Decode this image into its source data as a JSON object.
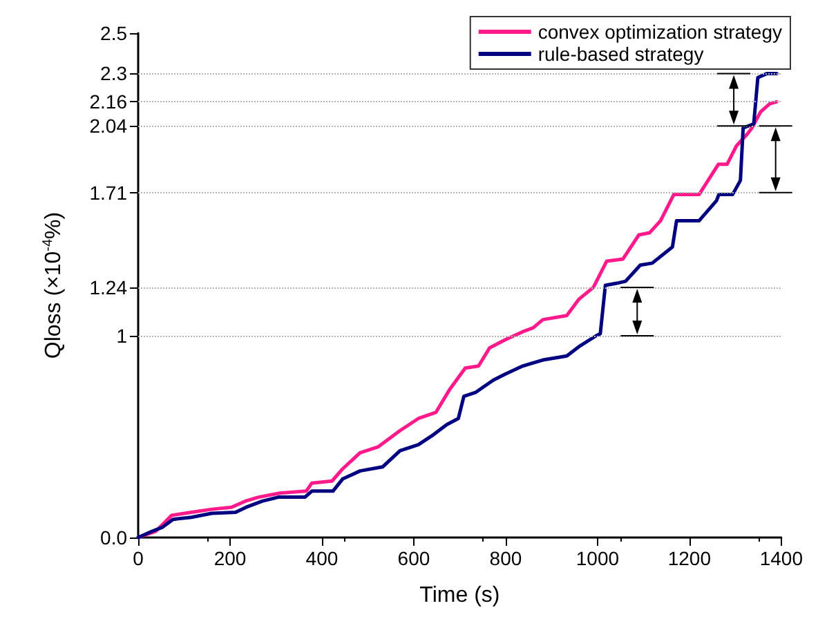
{
  "chart_data": {
    "type": "line",
    "xlabel": "Time (s)",
    "ylabel": "Qloss (×10$^{-4}$%)",
    "xlim": [
      0,
      1400
    ],
    "xticks": [
      0,
      200,
      400,
      600,
      800,
      1000,
      1200,
      1400
    ],
    "ylim": [
      0,
      2.5
    ],
    "yticks": [
      "0.0",
      1,
      1.24,
      1.71,
      2.04,
      2.16,
      2.3,
      2.5
    ],
    "legend": "top right",
    "grid": false,
    "marker": "none",
    "line_style": "solid",
    "ref_lines": [
      {
        "axis": "y",
        "value": 1,
        "color": "#b4b4b4",
        "line_style": "dotted"
      },
      {
        "axis": "y",
        "value": 1.24,
        "color": "#b4b4b4",
        "line_style": "dotted"
      },
      {
        "axis": "y",
        "value": 1.71,
        "color": "#b4b4b4",
        "line_style": "dotted"
      },
      {
        "axis": "y",
        "value": 2.04,
        "color": "#b4b4b4",
        "line_style": "dotted"
      },
      {
        "axis": "y",
        "value": 2.16,
        "color": "#b4b4b4",
        "line_style": "dotted"
      },
      {
        "axis": "y",
        "value": 2.3,
        "color": "#b4b4b4",
        "line_style": "dotted"
      }
    ],
    "series": [
      {
        "name": "convex optimization strategy",
        "color": "#ff1a8c",
        "x": [
          0,
          38,
          73,
          116,
          160,
          203,
          233,
          262,
          308,
          366,
          378,
          422,
          445,
          483,
          523,
          570,
          610,
          648,
          677,
          712,
          741,
          765,
          799,
          837,
          860,
          881,
          933,
          959,
          991,
          1020,
          1055,
          1090,
          1113,
          1137,
          1166,
          1221,
          1263,
          1282,
          1302,
          1326,
          1336,
          1355,
          1375,
          1390
        ],
        "values": [
          0,
          0.03,
          0.11,
          0.125,
          0.14,
          0.15,
          0.18,
          0.2,
          0.22,
          0.23,
          0.27,
          0.28,
          0.34,
          0.42,
          0.45,
          0.53,
          0.59,
          0.62,
          0.73,
          0.84,
          0.85,
          0.94,
          0.98,
          1.02,
          1.04,
          1.08,
          1.1,
          1.18,
          1.24,
          1.37,
          1.38,
          1.5,
          1.51,
          1.57,
          1.7,
          1.7,
          1.85,
          1.85,
          1.94,
          2.0,
          2.03,
          2.11,
          2.15,
          2.16
        ]
      },
      {
        "name": "rule-based strategy",
        "color": "#000080",
        "x": [
          0,
          29,
          52,
          76,
          116,
          160,
          212,
          235,
          270,
          305,
          363,
          378,
          424,
          445,
          483,
          532,
          570,
          610,
          643,
          672,
          697,
          709,
          735,
          773,
          799,
          837,
          881,
          933,
          962,
          997,
          1006,
          1017,
          1041,
          1061,
          1093,
          1119,
          1163,
          1172,
          1221,
          1259,
          1264,
          1294,
          1311,
          1317,
          1340,
          1349,
          1369,
          1390
        ],
        "values": [
          0,
          0.03,
          0.05,
          0.09,
          0.1,
          0.12,
          0.125,
          0.15,
          0.18,
          0.2,
          0.2,
          0.23,
          0.23,
          0.29,
          0.33,
          0.35,
          0.43,
          0.46,
          0.51,
          0.56,
          0.59,
          0.7,
          0.72,
          0.78,
          0.81,
          0.85,
          0.88,
          0.9,
          0.95,
          1.0,
          1.01,
          1.25,
          1.26,
          1.27,
          1.35,
          1.36,
          1.44,
          1.57,
          1.57,
          1.67,
          1.7,
          1.7,
          1.77,
          2.03,
          2.05,
          2.28,
          2.3,
          2.3
        ]
      }
    ]
  }
}
